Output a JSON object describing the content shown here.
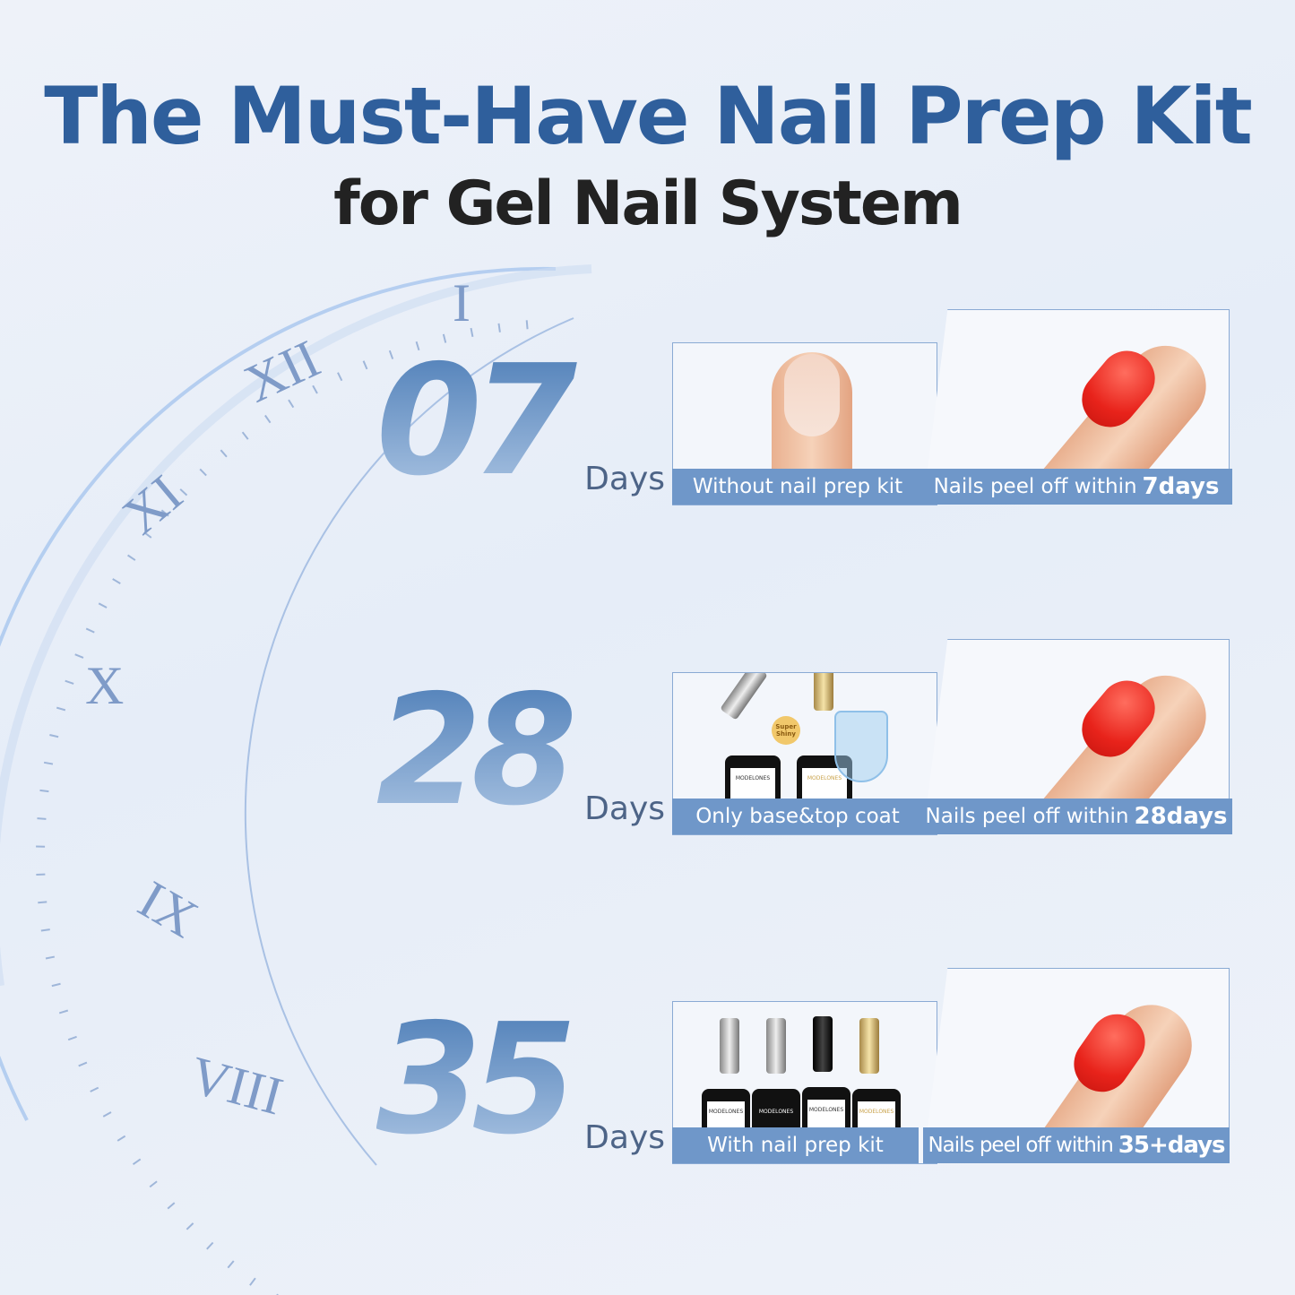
{
  "header": {
    "title": "The Must-Have Nail Prep Kit",
    "subtitle": "for Gel Nail System"
  },
  "clock": {
    "numerals": [
      "I",
      "XII",
      "XI",
      "X",
      "IX",
      "VIII"
    ]
  },
  "rows": [
    {
      "number": "07",
      "unit": "Days",
      "left_caption": "Without nail prep kit",
      "right_caption": "Nails peel off within",
      "right_emphasis": "7days"
    },
    {
      "number": "28",
      "unit": "Days",
      "left_caption": "Only base&top coat",
      "right_caption": "Nails peel off within",
      "right_emphasis": "28days",
      "badge": "Super Shiny"
    },
    {
      "number": "35",
      "unit": "Days",
      "left_caption": "With nail prep kit",
      "right_caption": "Nails peel off within",
      "right_emphasis": "35+days"
    }
  ],
  "brand": "MODELONES",
  "colors": {
    "title": "#2f5f9c",
    "caption_bar": "#6f97c9",
    "nail": "#e8231b"
  }
}
